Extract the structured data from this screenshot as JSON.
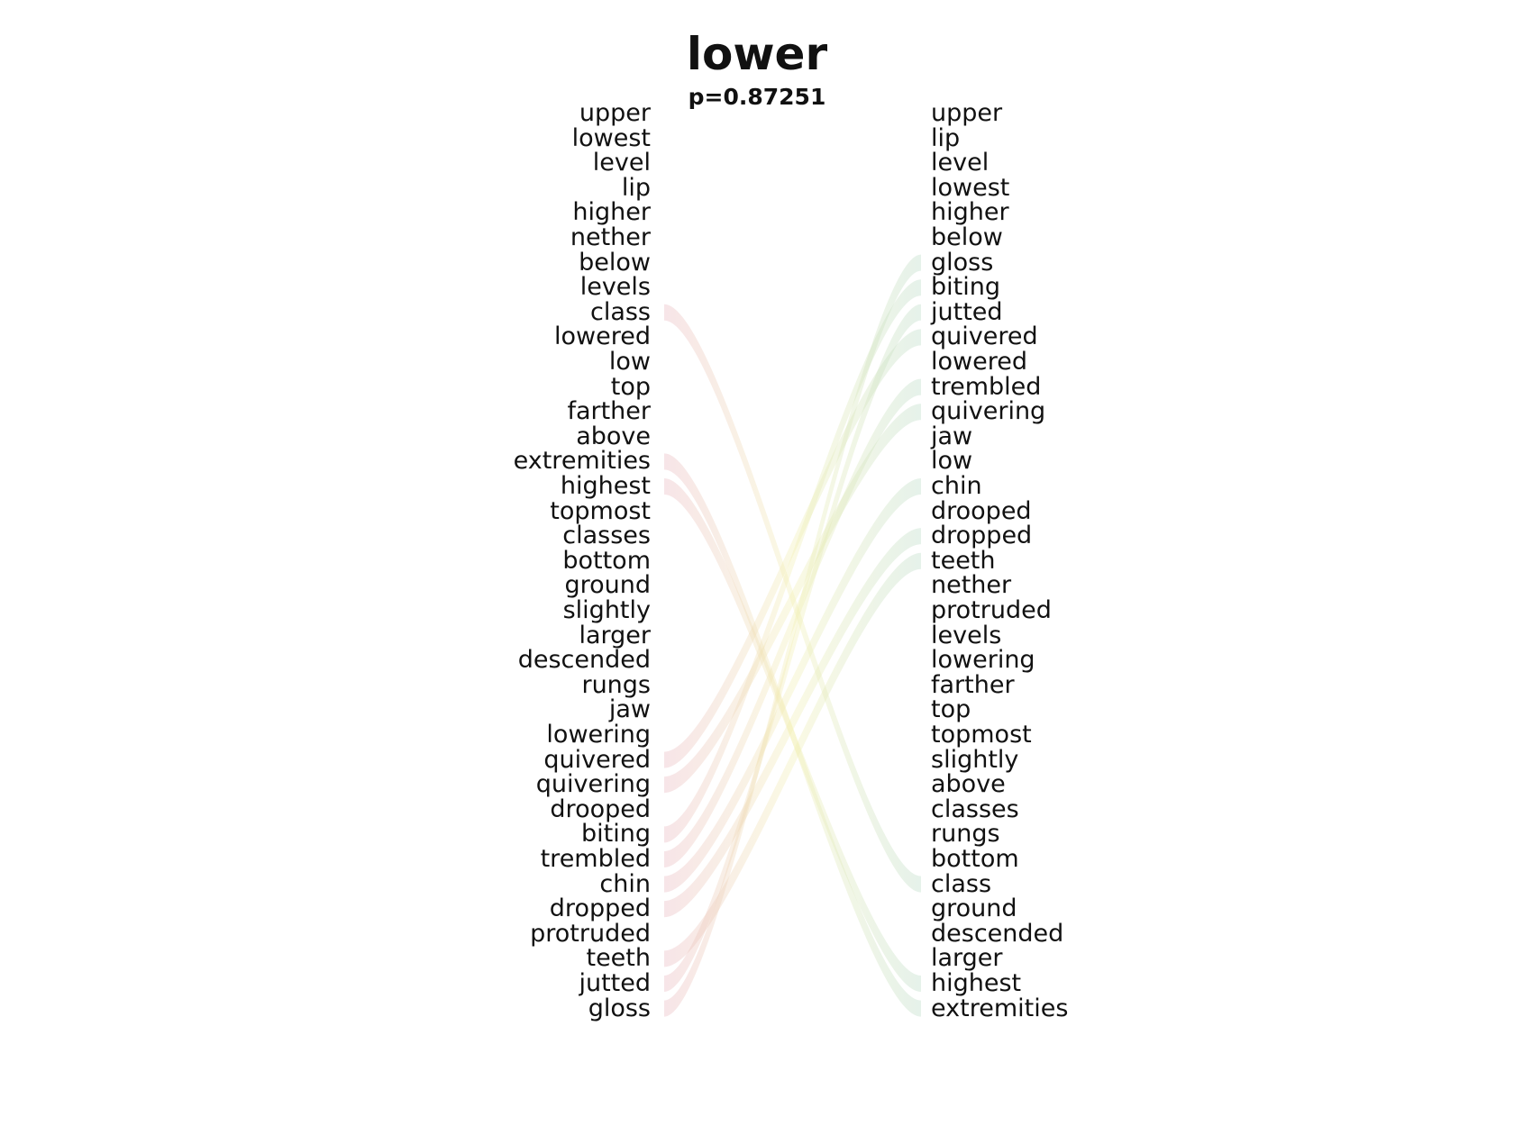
{
  "title": "lower",
  "subtitle": "p=0.87251",
  "colors": {
    "left_ribbon": "#e8b4bc",
    "right_ribbon": "#b7d9c2",
    "center_tint": "#f2efb0",
    "text": "#111111"
  },
  "left_words": [
    "upper",
    "lowest",
    "level",
    "lip",
    "higher",
    "nether",
    "below",
    "levels",
    "class",
    "lowered",
    "low",
    "top",
    "farther",
    "above",
    "extremities",
    "highest",
    "topmost",
    "classes",
    "bottom",
    "ground",
    "slightly",
    "larger",
    "descended",
    "rungs",
    "jaw",
    "lowering",
    "quivered",
    "quivering",
    "drooped",
    "biting",
    "trembled",
    "chin",
    "dropped",
    "protruded",
    "teeth",
    "jutted",
    "gloss"
  ],
  "right_words": [
    "upper",
    "lip",
    "level",
    "lowest",
    "higher",
    "below",
    "gloss",
    "biting",
    "jutted",
    "quivered",
    "lowered",
    "trembled",
    "quivering",
    "jaw",
    "low",
    "chin",
    "drooped",
    "dropped",
    "teeth",
    "nether",
    "protruded",
    "levels",
    "lowering",
    "farther",
    "top",
    "topmost",
    "slightly",
    "above",
    "classes",
    "rungs",
    "bottom",
    "class",
    "ground",
    "descended",
    "larger",
    "highest",
    "extremities"
  ]
}
